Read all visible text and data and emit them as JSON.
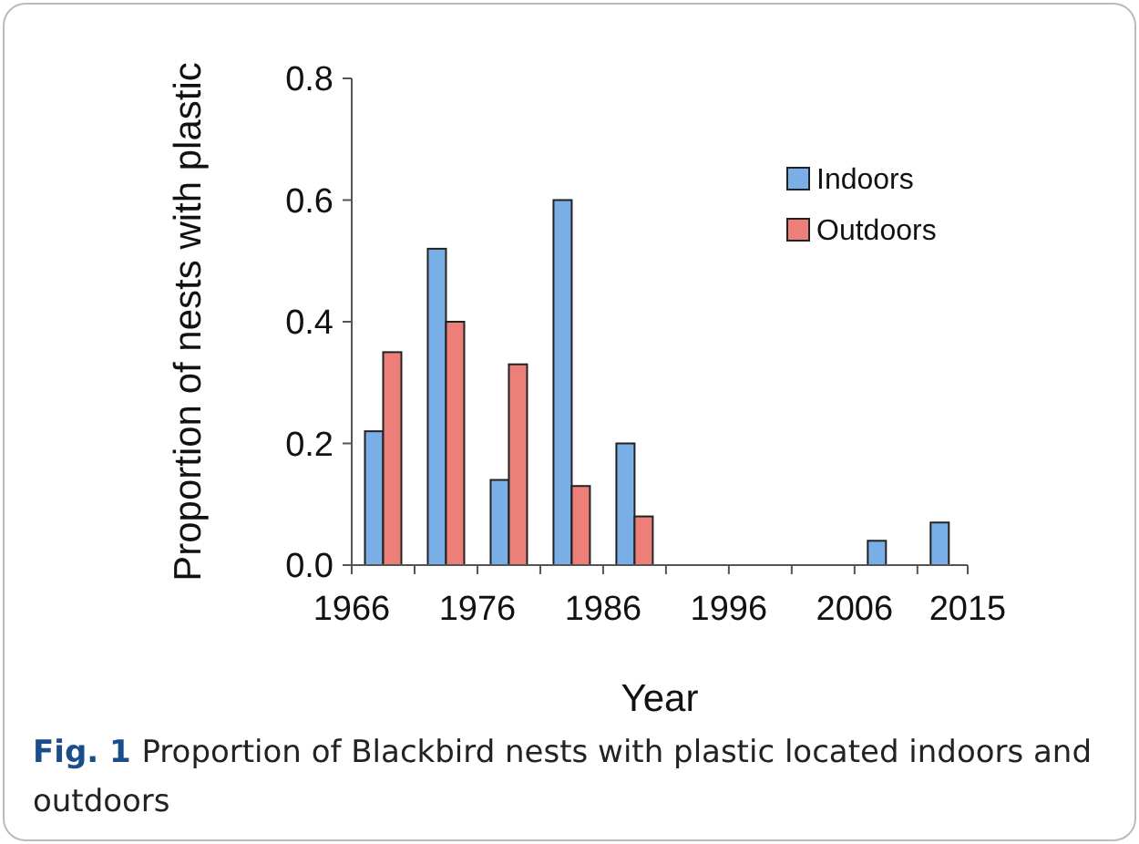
{
  "chart_data": {
    "type": "bar",
    "xlabel": "Year",
    "ylabel": "Proportion of nests with plastic",
    "x": [
      1968.5,
      1973.5,
      1978.5,
      1983.5,
      1988.5,
      1993.5,
      1998.5,
      2003.5,
      2008.5,
      2013.5
    ],
    "series": [
      {
        "name": "Indoors",
        "color": "#79aee6",
        "values": [
          0.22,
          0.52,
          0.14,
          0.6,
          0.2,
          0,
          0,
          0,
          0.04,
          0.07
        ]
      },
      {
        "name": "Outdoors",
        "color": "#ec7f78",
        "values": [
          0.35,
          0.4,
          0.33,
          0.13,
          0.08,
          0,
          0,
          0,
          0,
          0
        ]
      }
    ],
    "xlim": [
      1966,
      2015
    ],
    "xticks": [
      1966,
      {
        "value": 1971,
        "label": null
      },
      1976,
      {
        "value": 1981,
        "label": null
      },
      1986,
      {
        "value": 1991,
        "label": null
      },
      1996,
      {
        "value": 2001,
        "label": null
      },
      2006,
      {
        "value": 2011,
        "label": null
      },
      2015
    ],
    "ylim": [
      0,
      0.8
    ],
    "yticks": [
      {
        "value": 0,
        "label": "0.0"
      },
      {
        "value": 0.2,
        "label": "0.2"
      },
      {
        "value": 0.4,
        "label": "0.4"
      },
      {
        "value": 0.6,
        "label": "0.6"
      },
      {
        "value": 0.8,
        "label": "0.8"
      }
    ],
    "grid": false,
    "legend": "top right",
    "annotations": [
      "**Fig. 1** Proportion of Blackbird nests with plastic located indoors and outdoors"
    ]
  }
}
